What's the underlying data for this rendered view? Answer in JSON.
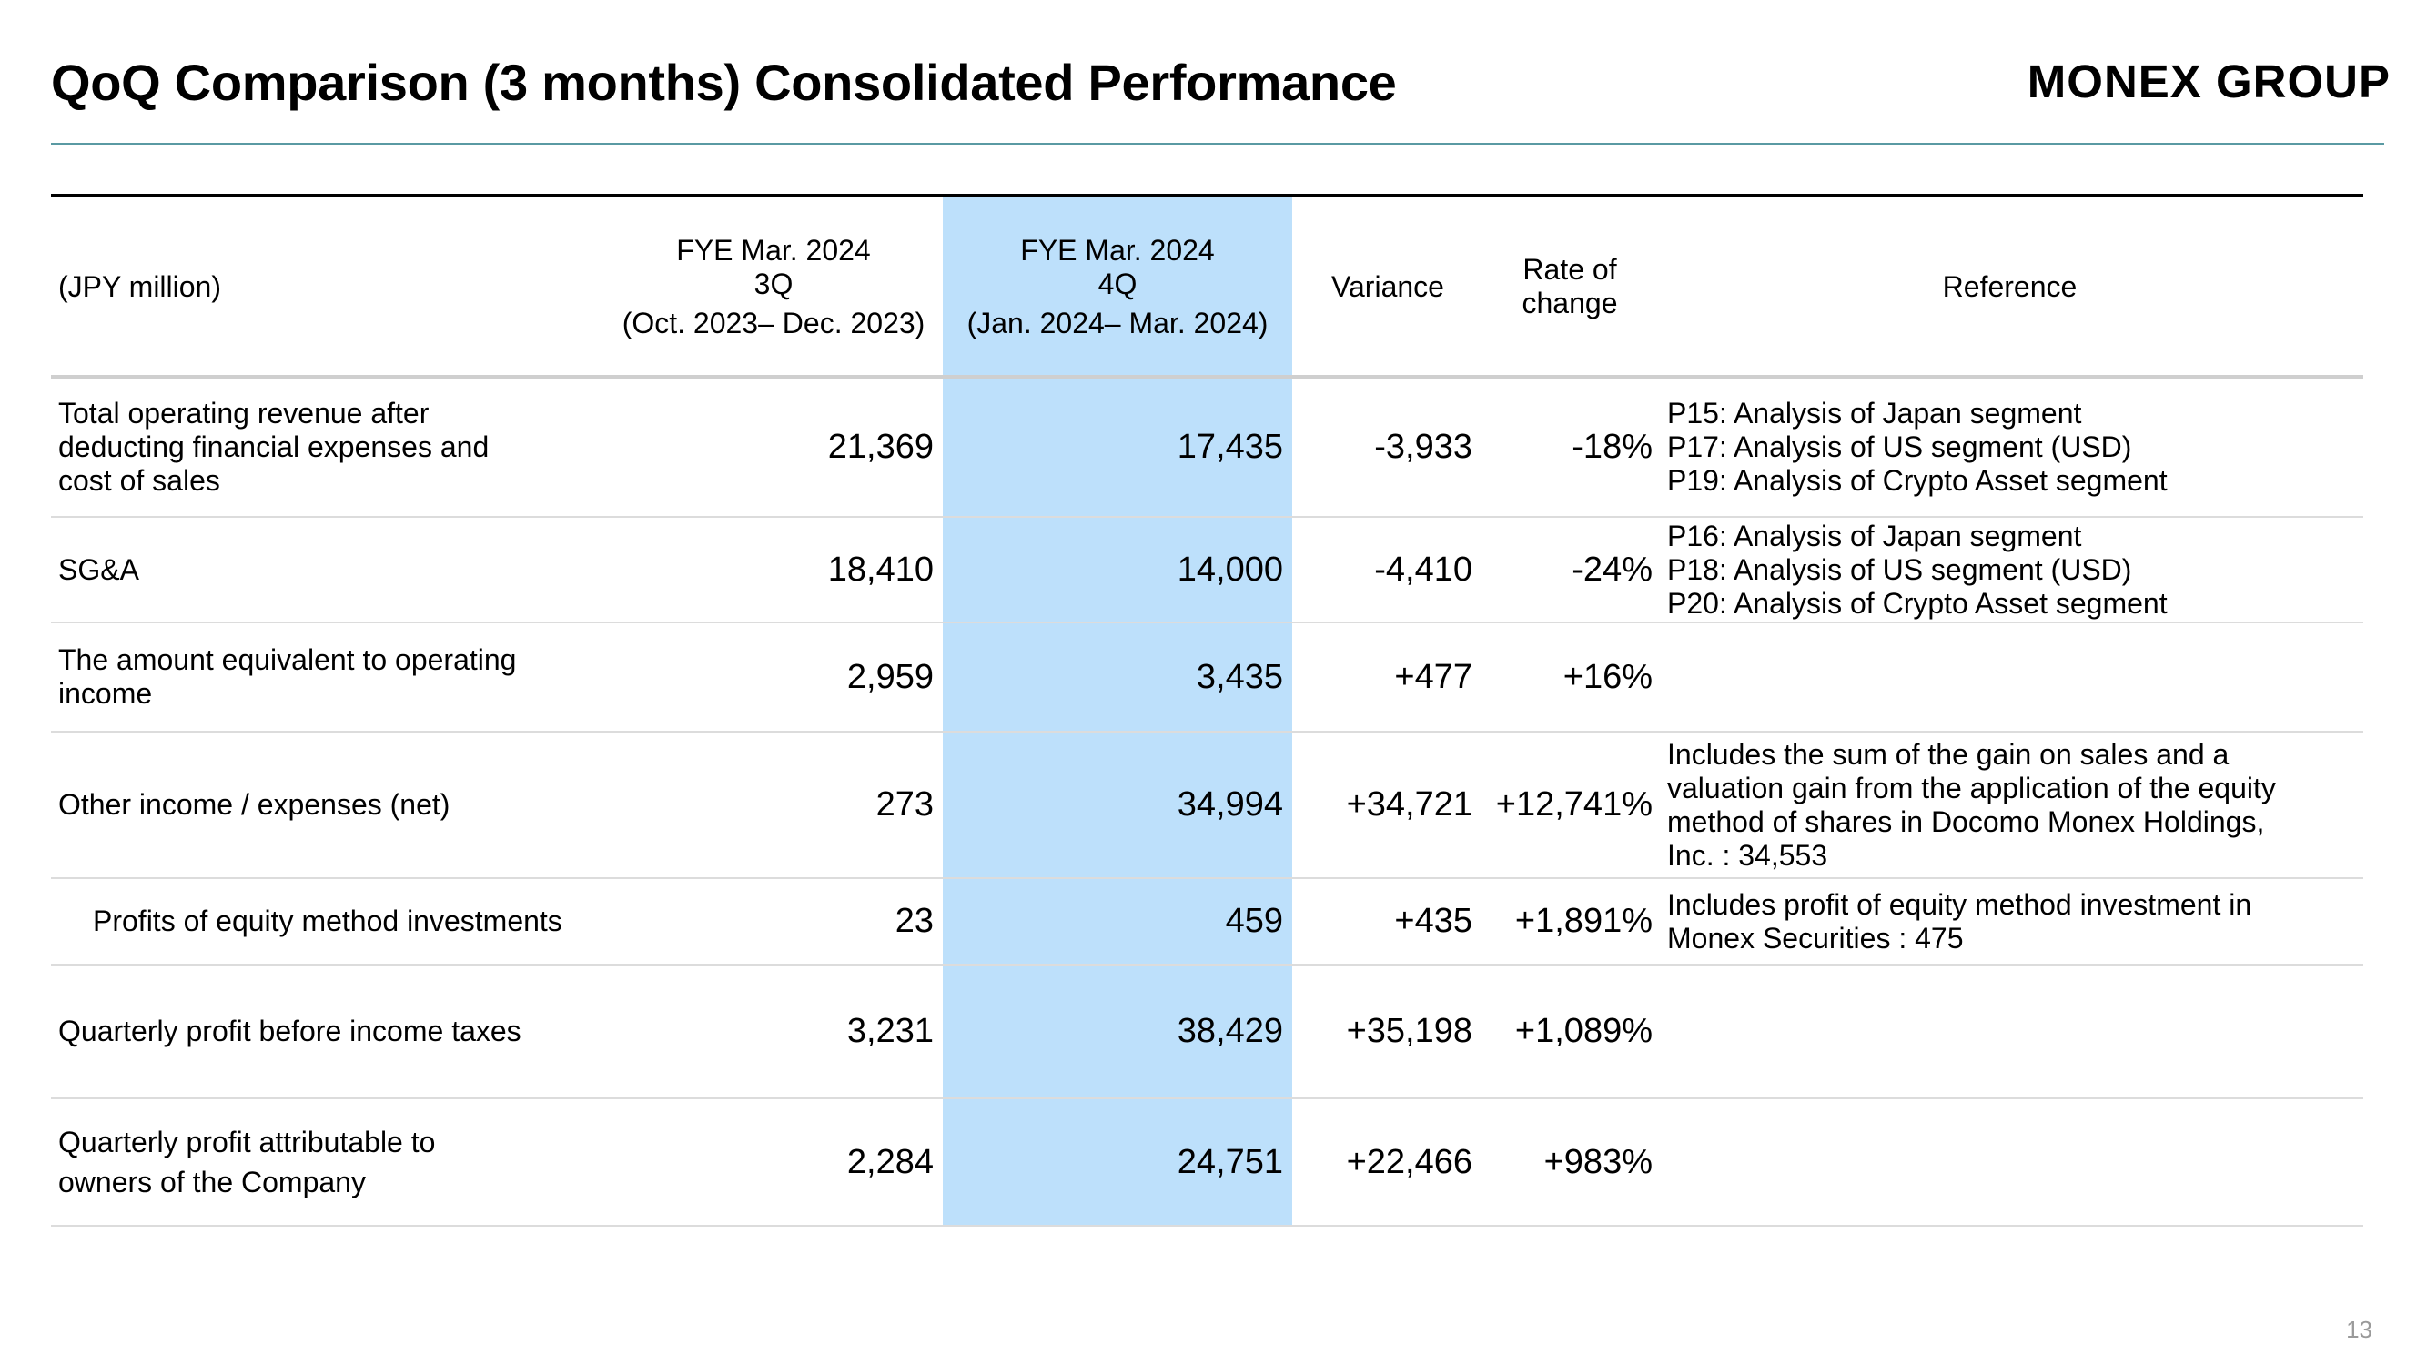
{
  "header": {
    "title": "QoQ Comparison (3 months) Consolidated Performance",
    "logo_text": "MONEX GROUP"
  },
  "colors": {
    "highlight": "#bde0fb",
    "rule": "#5a9aa3"
  },
  "table": {
    "unit_label": "(JPY million)",
    "col_3q": {
      "line1": "FYE Mar. 2024",
      "line2": "3Q",
      "line3": "(Oct. 2023– Dec. 2023)"
    },
    "col_4q": {
      "line1": "FYE Mar. 2024",
      "line2": "4Q",
      "line3": "(Jan. 2024– Mar. 2024)"
    },
    "col_variance": "Variance",
    "col_rate": "Rate of\nchange",
    "col_reference": "Reference",
    "rows": [
      {
        "label": "Total operating revenue after\ndeducting financial expenses and\ncost of sales",
        "q3": "21,369",
        "q4": "17,435",
        "variance": "-3,933",
        "rate": "-18%",
        "reference": "P15: Analysis of Japan segment\nP17: Analysis of US segment (USD)\nP19: Analysis of Crypto Asset segment"
      },
      {
        "label": "SG&A",
        "q3": "18,410",
        "q4": "14,000",
        "variance": "-4,410",
        "rate": "-24%",
        "reference": "P16: Analysis of Japan segment\nP18: Analysis of US segment (USD)\nP20: Analysis of Crypto Asset segment"
      },
      {
        "label": "The amount equivalent to operating\nincome",
        "q3": "2,959",
        "q4": "3,435",
        "variance": "+477",
        "rate": "+16%",
        "reference": ""
      },
      {
        "label": "Other income / expenses (net)",
        "q3": "273",
        "q4": "34,994",
        "variance": "+34,721",
        "rate": "+12,741%",
        "reference": "Includes the sum of the gain on sales and a\nvaluation gain from the application of the equity\nmethod of shares in Docomo Monex Holdings,\nInc. : 34,553"
      },
      {
        "label": "Profits of equity method investments",
        "q3": "23",
        "q4": "459",
        "variance": "+435",
        "rate": "+1,891%",
        "reference": "Includes profit of equity method investment in\nMonex Securities : 475"
      },
      {
        "label": "Quarterly profit before income taxes",
        "q3": "3,231",
        "q4": "38,429",
        "variance": "+35,198",
        "rate": "+1,089%",
        "reference": ""
      },
      {
        "label": "Quarterly profit attributable to\nowners of the Company",
        "q3": "2,284",
        "q4": "24,751",
        "variance": "+22,466",
        "rate": "+983%",
        "reference": ""
      }
    ]
  },
  "footer": {
    "page_number": "13"
  }
}
